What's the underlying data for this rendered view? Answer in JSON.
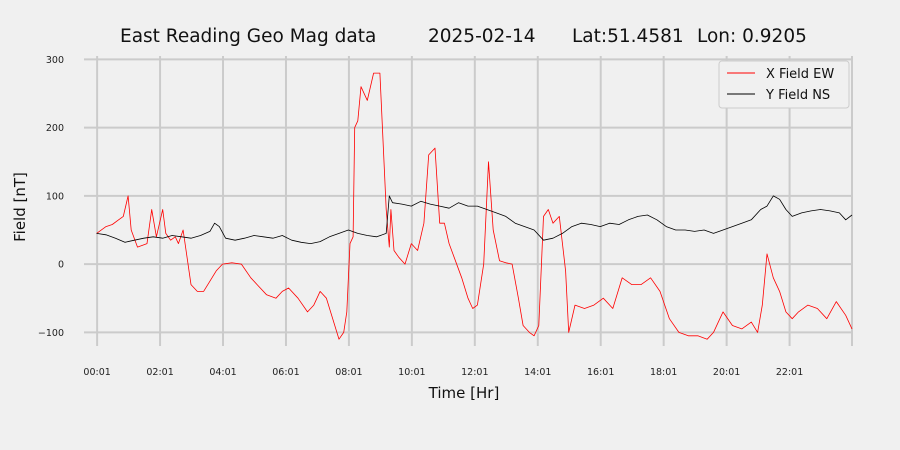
{
  "chart_data": {
    "type": "line",
    "title": {
      "name": "East Reading Geo Mag data",
      "date": "2025-02-14",
      "lat": "Lat:51.4581",
      "lon": "Lon: 0.9205"
    },
    "xlabel": "Time  [Hr]",
    "ylabel": "Field  [nT]",
    "xlim": [
      -0.4,
      24.0
    ],
    "ylim": [
      -120,
      305
    ],
    "x_ticks": [
      0.0167,
      2.0167,
      4.0167,
      6.0167,
      8.0167,
      10.0167,
      12.0167,
      14.0167,
      16.0167,
      18.0167,
      20.0167,
      22.0167
    ],
    "x_tick_labels": [
      "00:01",
      "02:01",
      "04:01",
      "06:01",
      "08:01",
      "10:01",
      "12:01",
      "14:01",
      "16:01",
      "18:01",
      "20:01",
      "22:01"
    ],
    "x_grid_extra": [
      24.0
    ],
    "y_ticks": [
      -100,
      0,
      100,
      200,
      300
    ],
    "y_tick_labels": [
      "−100",
      "0",
      "100",
      "200",
      "300"
    ],
    "grid": true,
    "legend_position": "top-right",
    "series": [
      {
        "name": "X Field EW",
        "color": "#ff0000",
        "x": [
          0.0,
          0.3,
          0.5,
          0.7,
          0.85,
          1.0,
          1.1,
          1.3,
          1.6,
          1.75,
          1.9,
          2.1,
          2.2,
          2.35,
          2.5,
          2.6,
          2.75,
          3.0,
          3.2,
          3.4,
          3.6,
          3.8,
          4.0,
          4.3,
          4.6,
          4.9,
          5.1,
          5.4,
          5.7,
          5.9,
          6.1,
          6.4,
          6.7,
          6.9,
          7.1,
          7.3,
          7.5,
          7.7,
          7.85,
          7.95,
          8.05,
          8.15,
          8.2,
          8.3,
          8.4,
          8.6,
          8.8,
          9.0,
          9.2,
          9.3,
          9.35,
          9.45,
          9.6,
          9.8,
          10.0,
          10.2,
          10.4,
          10.55,
          10.75,
          10.9,
          11.05,
          11.2,
          11.4,
          11.6,
          11.8,
          11.95,
          12.1,
          12.3,
          12.45,
          12.6,
          12.8,
          13.0,
          13.2,
          13.4,
          13.55,
          13.75,
          13.9,
          14.05,
          14.2,
          14.35,
          14.5,
          14.7,
          14.9,
          15.0,
          15.2,
          15.5,
          15.8,
          16.1,
          16.4,
          16.7,
          17.0,
          17.3,
          17.6,
          17.9,
          18.2,
          18.5,
          18.8,
          19.1,
          19.4,
          19.6,
          19.9,
          20.2,
          20.5,
          20.8,
          21.0,
          21.15,
          21.3,
          21.5,
          21.7,
          21.9,
          22.1,
          22.3,
          22.6,
          22.9,
          23.2,
          23.5,
          23.8,
          24.0
        ],
        "y": [
          45,
          55,
          58,
          65,
          70,
          100,
          50,
          25,
          30,
          80,
          40,
          80,
          45,
          35,
          40,
          30,
          50,
          -30,
          -40,
          -40,
          -25,
          -10,
          0,
          2,
          0,
          -20,
          -30,
          -45,
          -50,
          -40,
          -35,
          -50,
          -70,
          -60,
          -40,
          -50,
          -80,
          -110,
          -100,
          -70,
          30,
          40,
          200,
          210,
          260,
          240,
          280,
          280,
          80,
          25,
          80,
          20,
          10,
          0,
          30,
          20,
          60,
          160,
          170,
          60,
          60,
          30,
          5,
          -20,
          -50,
          -65,
          -60,
          0,
          150,
          50,
          5,
          2,
          0,
          -50,
          -90,
          -100,
          -105,
          -90,
          70,
          80,
          60,
          70,
          -10,
          -100,
          -60,
          -65,
          -60,
          -50,
          -65,
          -20,
          -30,
          -30,
          -20,
          -40,
          -80,
          -100,
          -105,
          -105,
          -110,
          -100,
          -70,
          -90,
          -95,
          -85,
          -100,
          -60,
          15,
          -20,
          -40,
          -70,
          -80,
          -70,
          -60,
          -65,
          -80,
          -55,
          -75,
          -95
        ]
      },
      {
        "name": "Y Field NS",
        "color": "#000000",
        "x": [
          0.0,
          0.3,
          0.6,
          0.9,
          1.2,
          1.5,
          1.8,
          2.1,
          2.4,
          2.7,
          3.0,
          3.3,
          3.6,
          3.75,
          3.9,
          4.1,
          4.4,
          4.7,
          5.0,
          5.3,
          5.6,
          5.9,
          6.2,
          6.5,
          6.8,
          7.1,
          7.4,
          7.7,
          8.0,
          8.3,
          8.6,
          8.9,
          9.2,
          9.3,
          9.4,
          9.7,
          10.0,
          10.3,
          10.6,
          10.9,
          11.2,
          11.5,
          11.8,
          12.1,
          12.4,
          12.7,
          13.0,
          13.3,
          13.6,
          13.9,
          14.2,
          14.5,
          14.8,
          15.1,
          15.4,
          15.7,
          16.0,
          16.3,
          16.6,
          16.9,
          17.2,
          17.5,
          17.8,
          18.1,
          18.4,
          18.7,
          19.0,
          19.3,
          19.6,
          19.9,
          20.2,
          20.5,
          20.8,
          21.1,
          21.3,
          21.5,
          21.7,
          21.9,
          22.1,
          22.4,
          22.7,
          23.0,
          23.3,
          23.6,
          23.8,
          24.0
        ],
        "y": [
          45,
          43,
          38,
          32,
          35,
          38,
          40,
          38,
          42,
          40,
          38,
          42,
          48,
          60,
          55,
          38,
          35,
          38,
          42,
          40,
          38,
          42,
          35,
          32,
          30,
          33,
          40,
          45,
          50,
          45,
          42,
          40,
          45,
          100,
          90,
          88,
          85,
          92,
          88,
          85,
          82,
          90,
          85,
          85,
          80,
          75,
          70,
          60,
          55,
          50,
          35,
          38,
          45,
          55,
          60,
          58,
          55,
          60,
          58,
          65,
          70,
          72,
          65,
          55,
          50,
          50,
          48,
          50,
          45,
          50,
          55,
          60,
          65,
          80,
          85,
          100,
          95,
          80,
          70,
          75,
          78,
          80,
          78,
          75,
          65,
          72
        ]
      }
    ]
  }
}
